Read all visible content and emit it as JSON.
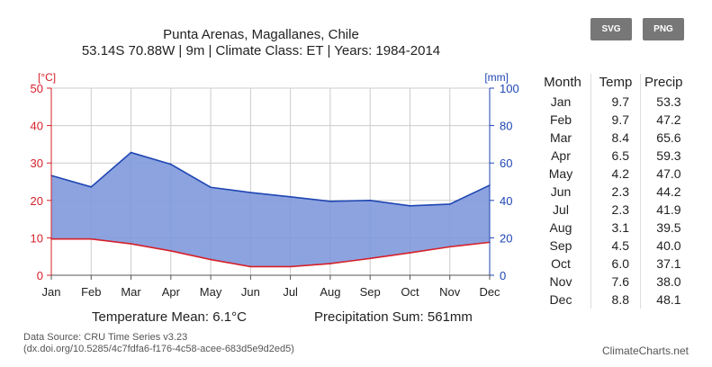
{
  "header": {
    "title": "Punta Arenas, Magallanes, Chile",
    "subtitle": "53.14S 70.88W | 9m | Climate Class: ET | Years: 1984-2014"
  },
  "buttons": {
    "svg": "SVG",
    "png": "PNG"
  },
  "summary": {
    "temperature": "Temperature Mean: 6.1°C",
    "precipitation": "Precipitation Sum: 561mm"
  },
  "footer": {
    "source_line1": "Data Source: CRU Time Series v3.23",
    "source_line2": "(dx.doi.org/10.5285/4c7fdfa6-f176-4c58-acee-683d5e9d2ed5)",
    "brand": "ClimateCharts.net"
  },
  "colors": {
    "temperature": "#d6202a",
    "precipitation_line": "#1f46b3",
    "precipitation_fill": "#7f99db",
    "grid": "#cccccc"
  },
  "table": {
    "headers": [
      "Month",
      "Temp",
      "Precip"
    ],
    "rows": [
      [
        "Jan",
        "9.7",
        "53.3"
      ],
      [
        "Feb",
        "9.7",
        "47.2"
      ],
      [
        "Mar",
        "8.4",
        "65.6"
      ],
      [
        "Apr",
        "6.5",
        "59.3"
      ],
      [
        "May",
        "4.2",
        "47.0"
      ],
      [
        "Jun",
        "2.3",
        "44.2"
      ],
      [
        "Jul",
        "2.3",
        "41.9"
      ],
      [
        "Aug",
        "3.1",
        "39.5"
      ],
      [
        "Sep",
        "4.5",
        "40.0"
      ],
      [
        "Oct",
        "6.0",
        "37.1"
      ],
      [
        "Nov",
        "7.6",
        "38.0"
      ],
      [
        "Dec",
        "8.8",
        "48.1"
      ]
    ]
  },
  "chart_data": {
    "type": "area",
    "categories": [
      "Jan",
      "Feb",
      "Mar",
      "Apr",
      "May",
      "Jun",
      "Jul",
      "Aug",
      "Sep",
      "Oct",
      "Nov",
      "Dec"
    ],
    "series": [
      {
        "values": [
          9.7,
          9.7,
          8.4,
          6.5,
          4.2,
          2.3,
          2.3,
          3.1,
          4.5,
          6.0,
          7.6,
          8.8
        ]
      },
      {
        "values": [
          53.3,
          47.2,
          65.6,
          59.3,
          47.0,
          44.2,
          41.9,
          39.5,
          40.0,
          37.1,
          38.0,
          48.1
        ]
      }
    ],
    "y_left": {
      "label": "[°C]",
      "ylim": [
        0,
        50
      ],
      "ticks": [
        0,
        10,
        20,
        30,
        40,
        50
      ]
    },
    "y_right": {
      "label": "[mm]",
      "ylim": [
        0,
        100
      ],
      "ticks": [
        0,
        20,
        40,
        60,
        80,
        100
      ]
    },
    "grid": true
  }
}
